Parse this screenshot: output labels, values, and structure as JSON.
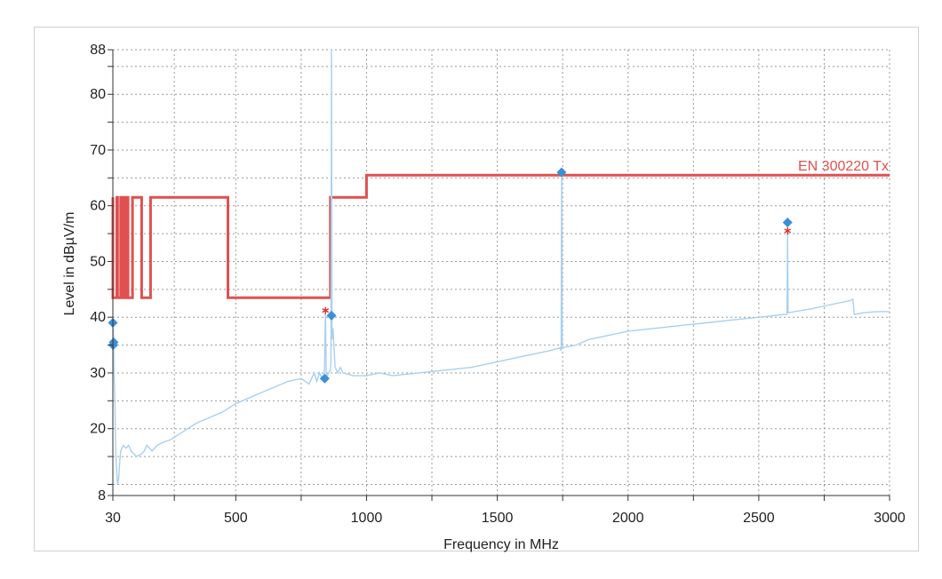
{
  "chart_data": {
    "type": "line",
    "xlabel": "Frequency in MHz",
    "ylabel": "Level in dBµV/m",
    "xlim": [
      30,
      3000
    ],
    "ylim": [
      8,
      88
    ],
    "x_ticks": [
      30,
      500,
      1000,
      1500,
      2000,
      2500,
      3000
    ],
    "y_ticks": [
      8,
      20,
      30,
      40,
      50,
      60,
      70,
      80,
      88
    ],
    "grid": true,
    "limit_line": {
      "name": "EN 300220 Tx",
      "color": "#e05050",
      "points": [
        [
          30,
          61.5
        ],
        [
          30,
          43.5
        ],
        [
          45,
          43.5
        ],
        [
          45,
          61.5
        ],
        [
          48,
          61.5
        ],
        [
          48,
          43.5
        ],
        [
          60,
          43.5
        ],
        [
          60,
          61.5
        ],
        [
          68,
          61.5
        ],
        [
          68,
          43.5
        ],
        [
          78,
          43.5
        ],
        [
          78,
          61.5
        ],
        [
          88,
          61.5
        ],
        [
          88,
          43.5
        ],
        [
          105,
          43.5
        ],
        [
          105,
          61.5
        ],
        [
          140,
          61.5
        ],
        [
          140,
          43.5
        ],
        [
          174,
          43.5
        ],
        [
          174,
          61.5
        ],
        [
          230,
          61.5
        ],
        [
          230,
          61.5
        ],
        [
          470,
          61.5
        ],
        [
          470,
          43.5
        ],
        [
          862,
          43.5
        ],
        [
          862,
          61.5
        ],
        [
          1000,
          61.5
        ],
        [
          1000,
          65.5
        ],
        [
          3000,
          65.5
        ]
      ]
    },
    "trace": {
      "color": "#a8d0f0",
      "points": [
        [
          30,
          34
        ],
        [
          32,
          38
        ],
        [
          34,
          31
        ],
        [
          36,
          28
        ],
        [
          38,
          24
        ],
        [
          40,
          19
        ],
        [
          42,
          15
        ],
        [
          45,
          12
        ],
        [
          48,
          10
        ],
        [
          52,
          11
        ],
        [
          56,
          14
        ],
        [
          60,
          16
        ],
        [
          70,
          17
        ],
        [
          80,
          16.5
        ],
        [
          90,
          17
        ],
        [
          100,
          16
        ],
        [
          110,
          15.5
        ],
        [
          120,
          15
        ],
        [
          130,
          15.2
        ],
        [
          140,
          15.5
        ],
        [
          150,
          16
        ],
        [
          160,
          17
        ],
        [
          170,
          16.5
        ],
        [
          180,
          16
        ],
        [
          200,
          17
        ],
        [
          220,
          17.5
        ],
        [
          250,
          18
        ],
        [
          300,
          19.5
        ],
        [
          350,
          21
        ],
        [
          400,
          22
        ],
        [
          450,
          23
        ],
        [
          500,
          24.5
        ],
        [
          550,
          25.5
        ],
        [
          600,
          26.5
        ],
        [
          650,
          27.5
        ],
        [
          700,
          28.5
        ],
        [
          750,
          29
        ],
        [
          780,
          28
        ],
        [
          800,
          30
        ],
        [
          810,
          28.5
        ],
        [
          820,
          30
        ],
        [
          830,
          29
        ],
        [
          838,
          29
        ],
        [
          840,
          33
        ],
        [
          843,
          41
        ],
        [
          846,
          30
        ],
        [
          850,
          29.5
        ],
        [
          855,
          30
        ],
        [
          862,
          30.5
        ],
        [
          864,
          32
        ],
        [
          866,
          88
        ],
        [
          868,
          36
        ],
        [
          872,
          38
        ],
        [
          876,
          34
        ],
        [
          880,
          31
        ],
        [
          890,
          30
        ],
        [
          900,
          31
        ],
        [
          910,
          30
        ],
        [
          950,
          29.5
        ],
        [
          1000,
          29.5
        ],
        [
          1050,
          30
        ],
        [
          1100,
          29.5
        ],
        [
          1200,
          30
        ],
        [
          1300,
          30.5
        ],
        [
          1400,
          31
        ],
        [
          1500,
          32
        ],
        [
          1600,
          33
        ],
        [
          1700,
          34
        ],
        [
          1740,
          34.5
        ],
        [
          1744,
          34
        ],
        [
          1746,
          66
        ],
        [
          1748,
          34.5
        ],
        [
          1800,
          35
        ],
        [
          1850,
          36
        ],
        [
          1900,
          36.5
        ],
        [
          2000,
          37.5
        ],
        [
          2100,
          38
        ],
        [
          2200,
          38.5
        ],
        [
          2300,
          39
        ],
        [
          2400,
          39.5
        ],
        [
          2500,
          40
        ],
        [
          2600,
          40.5
        ],
        [
          2608,
          40.5
        ],
        [
          2610,
          55.5
        ],
        [
          2612,
          40.8
        ],
        [
          2700,
          41.5
        ],
        [
          2800,
          42.5
        ],
        [
          2850,
          43
        ],
        [
          2860,
          43.2
        ],
        [
          2865,
          40.5
        ],
        [
          2900,
          40.8
        ],
        [
          2950,
          41
        ],
        [
          3000,
          41
        ]
      ]
    },
    "peak_markers": {
      "color": "#3a8fd8",
      "points": [
        [
          30,
          39
        ],
        [
          31,
          35
        ],
        [
          33,
          35.5
        ],
        [
          840,
          29
        ],
        [
          866,
          40.3
        ],
        [
          1746,
          66
        ],
        [
          2610,
          57
        ]
      ]
    },
    "quasi_peak_markers": {
      "color": "#e03030",
      "points": [
        [
          843,
          41.2
        ],
        [
          2610,
          55.5
        ]
      ]
    }
  }
}
